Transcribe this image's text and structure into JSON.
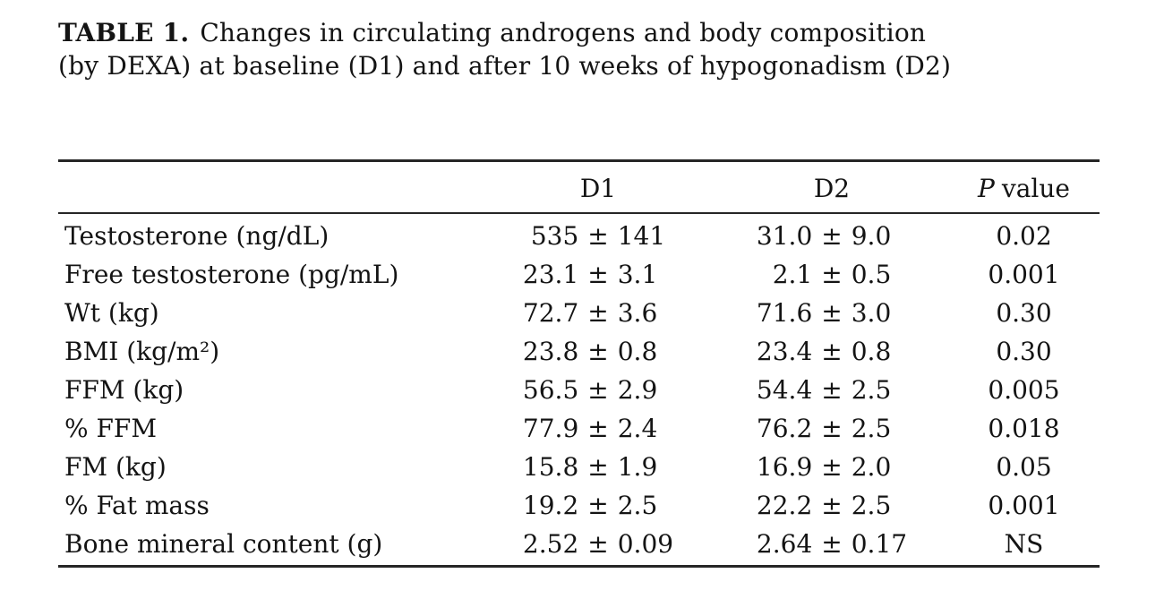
{
  "caption": {
    "label": "TABLE 1.",
    "text": "Changes in circulating androgens and body composition (by DEXA) at baseline (D1) and after 10 weeks of hypogonadism (D2)"
  },
  "table": {
    "pm": "±",
    "header": {
      "d1": "D1",
      "d2": "D2",
      "p_italic": "P",
      "p_rest": "value"
    },
    "rows": [
      {
        "label": "Testosterone (ng/dL)",
        "d1_mean": "535",
        "d1_sd": "141",
        "d2_mean": "31.0",
        "d2_sd": "9.0",
        "p": "0.02"
      },
      {
        "label": "Free testosterone (pg/mL)",
        "d1_mean": "23.1",
        "d1_sd": "3.1",
        "d2_mean": "2.1",
        "d2_sd": "0.5",
        "p": "0.001"
      },
      {
        "label": "Wt (kg)",
        "d1_mean": "72.7",
        "d1_sd": "3.6",
        "d2_mean": "71.6",
        "d2_sd": "3.0",
        "p": "0.30"
      },
      {
        "label": "BMI (kg/m²)",
        "d1_mean": "23.8",
        "d1_sd": "0.8",
        "d2_mean": "23.4",
        "d2_sd": "0.8",
        "p": "0.30"
      },
      {
        "label": "FFM (kg)",
        "d1_mean": "56.5",
        "d1_sd": "2.9",
        "d2_mean": "54.4",
        "d2_sd": "2.5",
        "p": "0.005"
      },
      {
        "label": "% FFM",
        "d1_mean": "77.9",
        "d1_sd": "2.4",
        "d2_mean": "76.2",
        "d2_sd": "2.5",
        "p": "0.018"
      },
      {
        "label": "FM (kg)",
        "d1_mean": "15.8",
        "d1_sd": "1.9",
        "d2_mean": "16.9",
        "d2_sd": "2.0",
        "p": "0.05"
      },
      {
        "label": "% Fat mass",
        "d1_mean": "19.2",
        "d1_sd": "2.5",
        "d2_mean": "22.2",
        "d2_sd": "2.5",
        "p": "0.001"
      },
      {
        "label": "Bone mineral content (g)",
        "d1_mean": "2.52",
        "d1_sd": "0.09",
        "d2_mean": "2.64",
        "d2_sd": "0.17",
        "p": "NS"
      }
    ]
  }
}
